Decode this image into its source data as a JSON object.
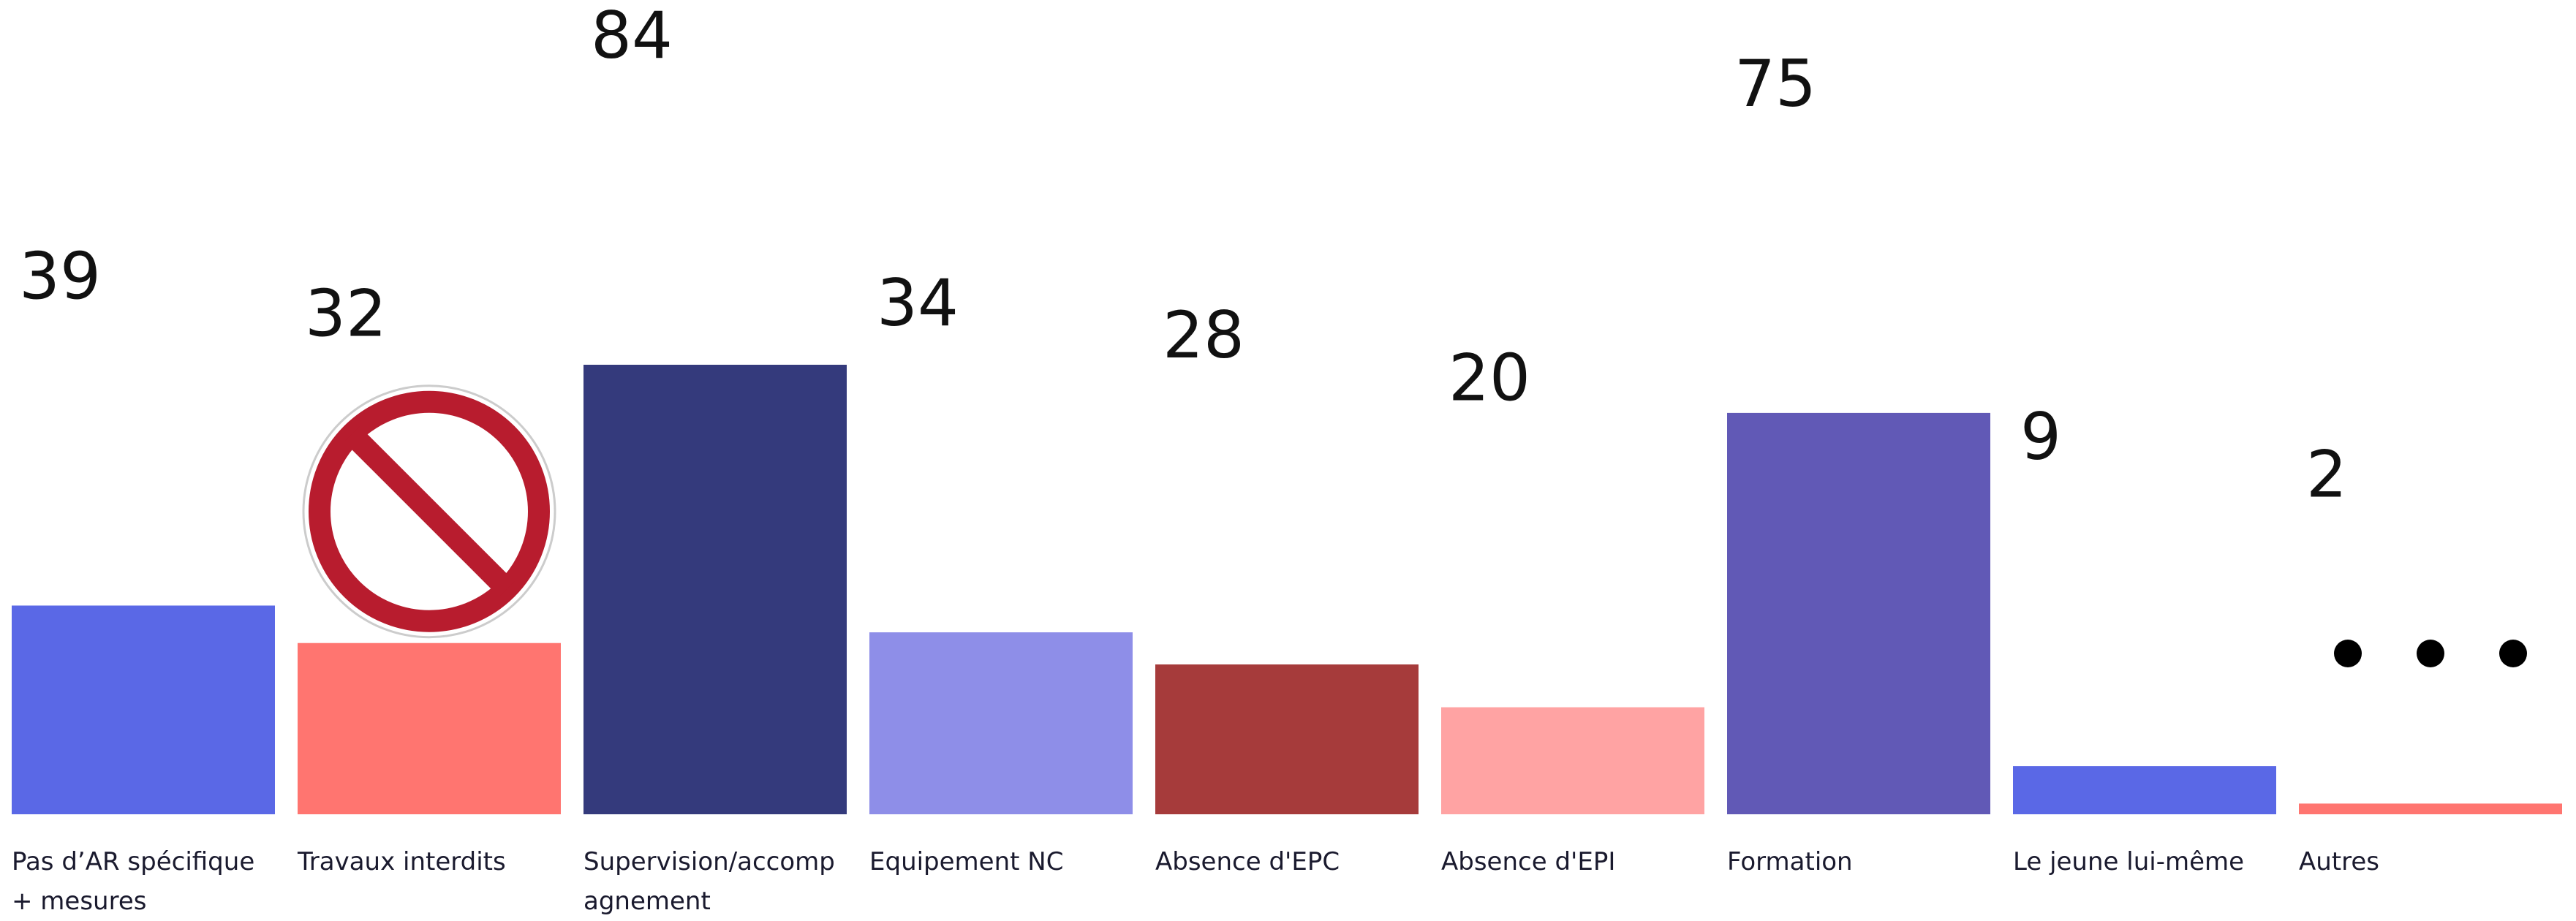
{
  "chart_data": {
    "type": "bar",
    "categories": [
      "Pas d’AR spécifique + mesures",
      "Travaux interdits",
      "Supervision/accompagnement",
      "Equipement NC",
      "Absence d'EPC",
      "Absence d'EPI",
      "Formation",
      "Le jeune lui-même",
      "Autres"
    ],
    "values": [
      39,
      32,
      84,
      34,
      28,
      20,
      75,
      9,
      2
    ],
    "colors": [
      "#5a68e6",
      "#ff7570",
      "#343a7c",
      "#8e8ee8",
      "#a63b3b",
      "#ffa3a3",
      "#6159b6",
      "#5a68e6",
      "#ff7570"
    ]
  }
}
